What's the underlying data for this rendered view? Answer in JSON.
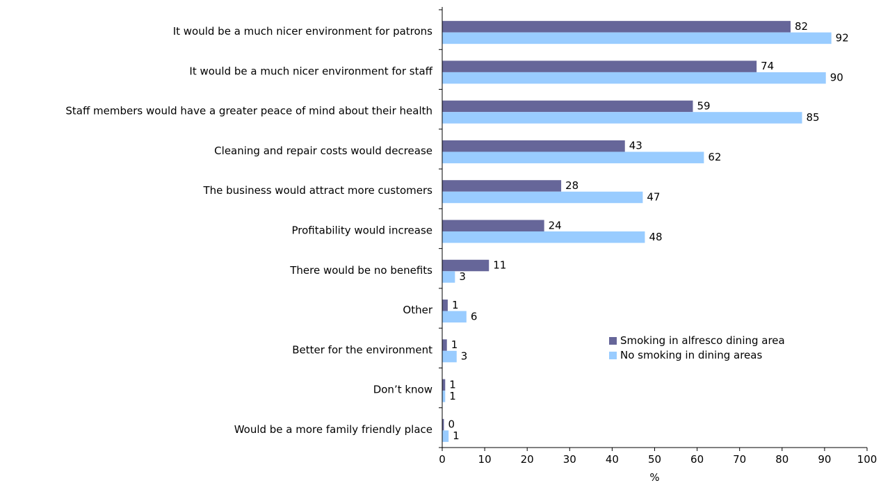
{
  "chart_data": {
    "type": "bar",
    "orientation": "horizontal",
    "categories": [
      "It would be a much nicer environment for patrons",
      "It would be a much nicer environment for staff",
      "Staff members would have a greater peace of mind about their health",
      "Cleaning and repair costs would decrease",
      "The business would attract more customers",
      "Profitability would increase",
      "There would be no benefits",
      "Other",
      "Better for the environment",
      "Don’t know",
      "Would be a more family friendly place"
    ],
    "series": [
      {
        "name": "Smoking in alfresco dining area",
        "color": "#666699",
        "values": [
          82,
          74,
          59,
          43,
          28,
          24,
          11,
          1,
          1,
          1,
          0
        ],
        "labels": [
          "82",
          "74",
          "59",
          "43",
          "28",
          "24",
          "11",
          "1",
          "1",
          "1",
          "0"
        ],
        "bar_values": [
          82,
          74,
          59,
          43,
          28,
          24,
          11,
          1.3,
          1.1,
          0.7,
          0.4
        ]
      },
      {
        "name": "No smoking in dining areas",
        "color": "#99ccff",
        "values": [
          92,
          90,
          85,
          62,
          47,
          48,
          3,
          6,
          3,
          1,
          1
        ],
        "labels": [
          "92",
          "90",
          "85",
          "62",
          "47",
          "48",
          "3",
          "6",
          "3",
          "1",
          "1"
        ],
        "bar_values": [
          91.6,
          90.3,
          84.7,
          61.6,
          47.2,
          47.7,
          3.0,
          5.7,
          3.4,
          0.7,
          1.5
        ]
      }
    ],
    "xlabel": "%",
    "ylabel": "",
    "title": "",
    "xlim": [
      0,
      100
    ],
    "xticks": [
      "0",
      "10",
      "20",
      "30",
      "40",
      "50",
      "60",
      "70",
      "80",
      "90",
      "100"
    ],
    "grid": false,
    "legend_position": "lower-right"
  }
}
